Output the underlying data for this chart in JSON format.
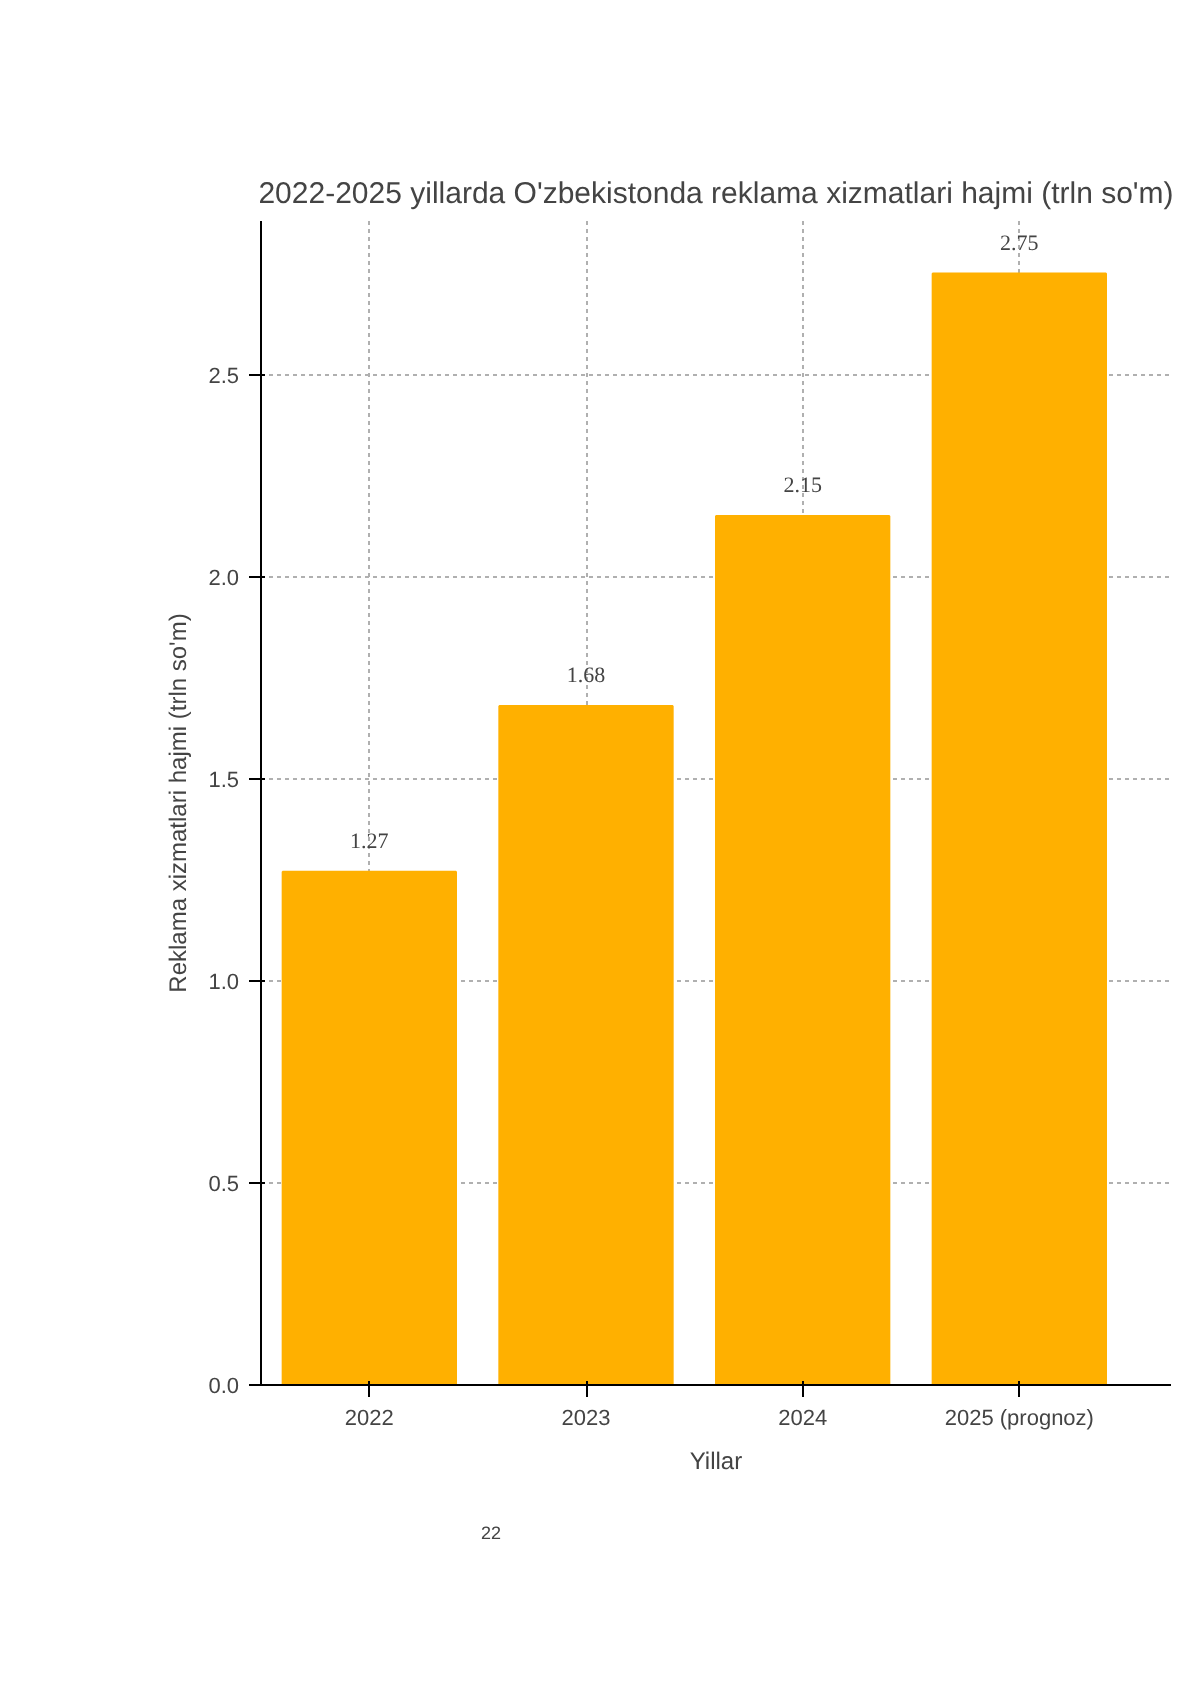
{
  "chart_data": {
    "type": "bar",
    "title": "2022-2025 yillarda O'zbekistonda reklama xizmatlari hajmi (trln so'm)",
    "xlabel": "Yillar",
    "ylabel": "Reklama xizmatlari hajmi (trln so'm)",
    "categories": [
      "2022",
      "2023",
      "2024",
      "2025 (prognoz)"
    ],
    "values": [
      1.27,
      1.68,
      2.15,
      2.75
    ],
    "color": "#ffb000",
    "data_labels": true,
    "ylim": [
      0,
      2.88
    ],
    "yticks": [
      {
        "value": 0,
        "label": "0.0"
      },
      {
        "value": 0.5,
        "label": "0.5"
      },
      {
        "value": 1,
        "label": "1.0"
      },
      {
        "value": 1.5,
        "label": "1.5"
      },
      {
        "value": 2,
        "label": "2.0"
      },
      {
        "value": 2.5,
        "label": "2.5"
      }
    ],
    "grid": true,
    "annotations": [
      "22"
    ]
  }
}
